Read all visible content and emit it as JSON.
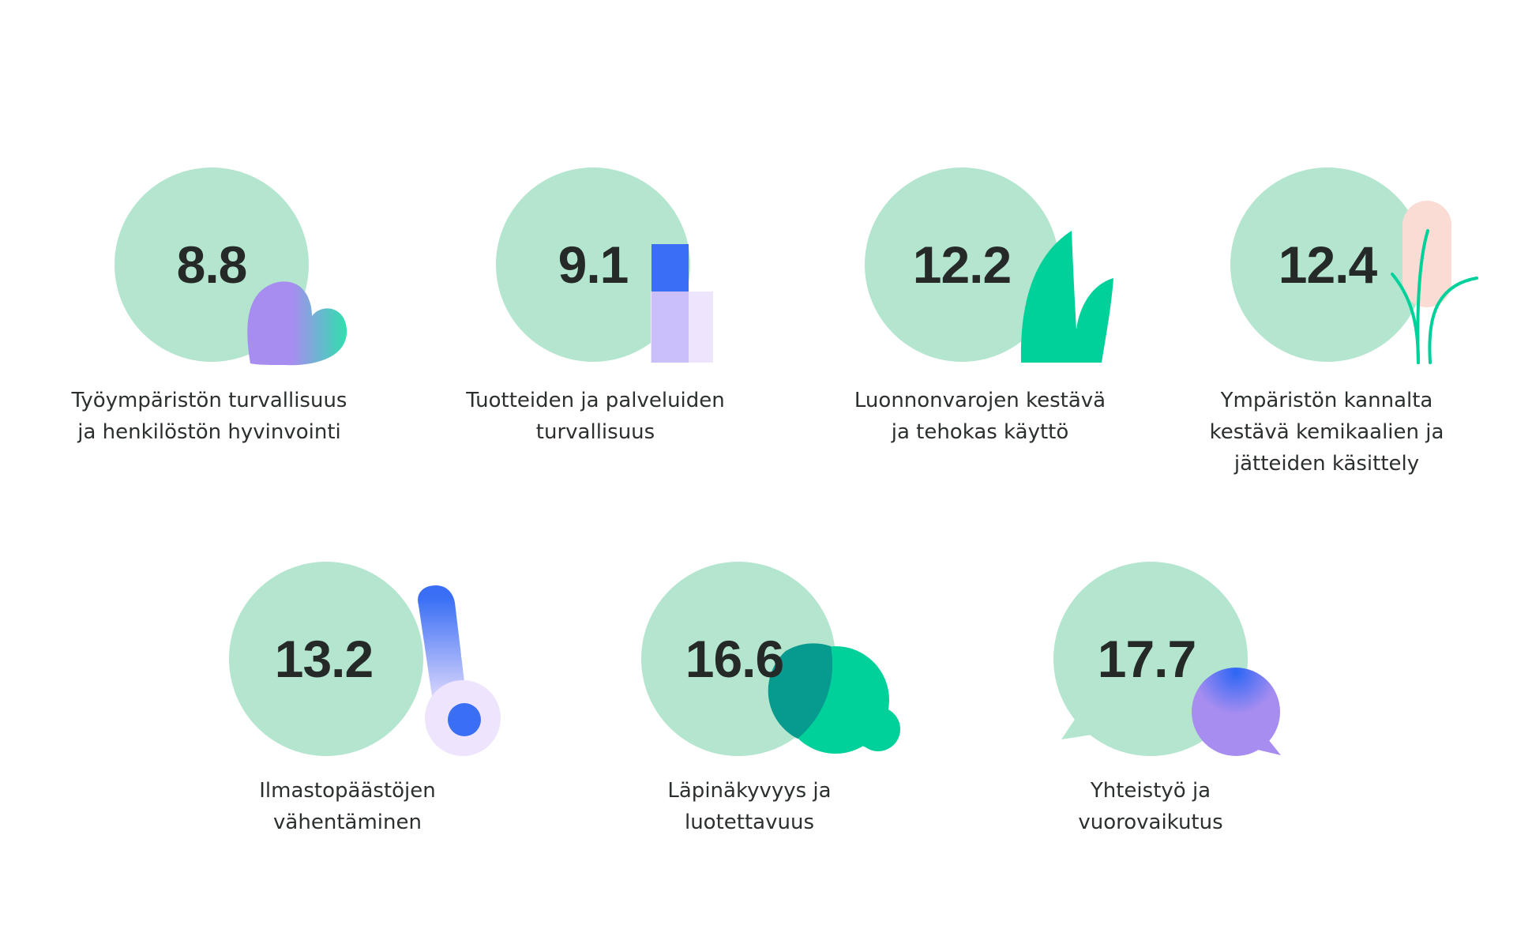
{
  "items": [
    {
      "score": "8.8",
      "label": [
        "Työympäristön turvallisuus",
        "ja henkilöstön hyvinvointi"
      ],
      "icon": "heart-icon"
    },
    {
      "score": "9.1",
      "label": [
        "Tuotteiden ja palveluiden",
        "turvallisuus"
      ],
      "icon": "product-icon"
    },
    {
      "score": "12.2",
      "label": [
        "Luonnonvarojen kestävä",
        "ja tehokas käyttö"
      ],
      "icon": "leaf-icon"
    },
    {
      "score": "12.4",
      "label": [
        "Ympäristön kannalta",
        "kestävä kemikaalien ja",
        "jätteiden käsittely"
      ],
      "icon": "plant-icon"
    },
    {
      "score": "13.2",
      "label": [
        "Ilmastopäästöjen",
        "vähentäminen"
      ],
      "icon": "thermometer-icon"
    },
    {
      "score": "16.6",
      "label": [
        "Läpinäkyvyys ja",
        "luotettavuus"
      ],
      "icon": "bubbles-icon"
    },
    {
      "score": "17.7",
      "label": [
        "Yhteistyö ja",
        "vuorovaikutus"
      ],
      "icon": "speech-bubble-icon"
    }
  ],
  "colors": {
    "circle": "#b4e5cf",
    "text": "#252a29",
    "green": "#00d19a",
    "blue": "#3a6ff5",
    "purple": "#a78df0",
    "lavender": "#efe4fd",
    "pink": "#fbdcd4"
  }
}
